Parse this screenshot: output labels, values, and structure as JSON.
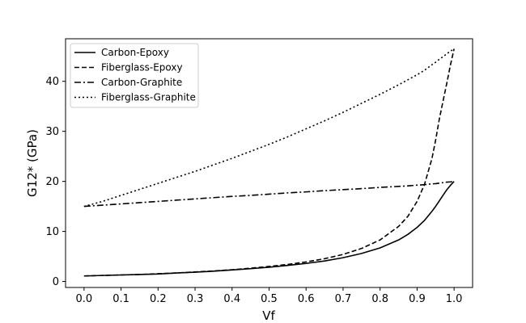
{
  "chart_data": {
    "type": "line",
    "title": "",
    "xlabel": "Vf",
    "ylabel": "G12* (GPa)",
    "xlim": [
      -0.05,
      1.05
    ],
    "ylim": [
      -1.2,
      48.5
    ],
    "grid": false,
    "legend_position": "top-left",
    "x_ticks": [
      0.0,
      0.1,
      0.2,
      0.3,
      0.4,
      0.5,
      0.6,
      0.7,
      0.8,
      0.9,
      1.0
    ],
    "x_tick_labels": [
      "0.0",
      "0.1",
      "0.2",
      "0.3",
      "0.4",
      "0.5",
      "0.6",
      "0.7",
      "0.8",
      "0.9",
      "1.0"
    ],
    "y_ticks": [
      0,
      10,
      20,
      30,
      40
    ],
    "y_tick_labels": [
      "0",
      "10",
      "20",
      "30",
      "40"
    ],
    "x": [
      0.0,
      0.05,
      0.1,
      0.15,
      0.2,
      0.25,
      0.3,
      0.35,
      0.4,
      0.45,
      0.5,
      0.55,
      0.6,
      0.65,
      0.7,
      0.75,
      0.8,
      0.85,
      0.875,
      0.9,
      0.92,
      0.94,
      0.95,
      0.96,
      0.97,
      0.98,
      0.99,
      1.0
    ],
    "series": [
      {
        "name": "Carbon-Epoxy",
        "style": "solid",
        "color": "#000000",
        "values": [
          1.1,
          1.2,
          1.3,
          1.4,
          1.5,
          1.7,
          1.85,
          2.05,
          2.3,
          2.55,
          2.85,
          3.2,
          3.6,
          4.1,
          4.75,
          5.6,
          6.7,
          8.3,
          9.4,
          10.8,
          12.2,
          14.0,
          15.0,
          16.1,
          17.2,
          18.3,
          19.2,
          20.0
        ]
      },
      {
        "name": "Fiberglass-Epoxy",
        "style": "dashed",
        "color": "#000000",
        "values": [
          1.1,
          1.2,
          1.3,
          1.4,
          1.55,
          1.7,
          1.9,
          2.1,
          2.35,
          2.65,
          3.0,
          3.4,
          3.9,
          4.55,
          5.4,
          6.6,
          8.3,
          11.0,
          13.0,
          16.0,
          19.4,
          24.5,
          28.2,
          32.4,
          36.0,
          39.5,
          43.2,
          46.5
        ]
      },
      {
        "name": "Carbon-Graphite",
        "style": "dashdot",
        "color": "#000000",
        "values": [
          15.0,
          15.25,
          15.5,
          15.75,
          16.0,
          16.25,
          16.5,
          16.75,
          17.0,
          17.2,
          17.45,
          17.7,
          17.9,
          18.15,
          18.35,
          18.55,
          18.8,
          19.0,
          19.1,
          19.25,
          19.35,
          19.5,
          19.55,
          19.65,
          19.75,
          19.85,
          19.9,
          20.0
        ]
      },
      {
        "name": "Fiberglass-Graphite",
        "style": "dotted",
        "color": "#000000",
        "values": [
          15.0,
          16.0,
          17.2,
          18.4,
          19.6,
          20.8,
          22.0,
          23.3,
          24.6,
          26.0,
          27.4,
          28.9,
          30.5,
          32.1,
          33.8,
          35.6,
          37.4,
          39.3,
          40.3,
          41.3,
          42.2,
          43.3,
          43.8,
          44.4,
          44.9,
          45.5,
          46.0,
          46.5
        ]
      }
    ]
  }
}
